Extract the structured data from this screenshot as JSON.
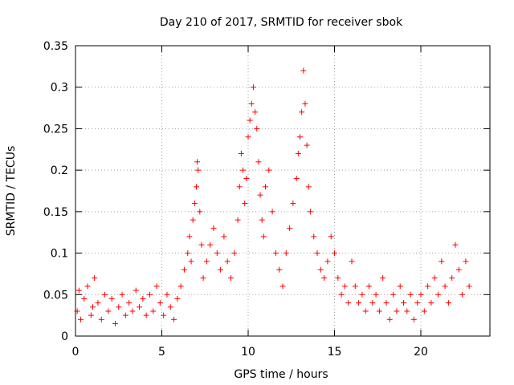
{
  "chart_data": {
    "type": "scatter",
    "title": "Day 210 of 2017, SRMTID for receiver sbok",
    "xlabel": "GPS time / hours",
    "ylabel": "SRMTID / TECUs",
    "xlim": [
      0,
      24
    ],
    "ylim": [
      0,
      0.35
    ],
    "x_ticks": [
      0,
      5,
      10,
      15,
      20
    ],
    "x_tick_labels": [
      "0",
      "5",
      "10",
      "15",
      "20"
    ],
    "y_ticks": [
      0,
      0.05,
      0.1,
      0.15,
      0.2,
      0.25,
      0.3,
      0.35
    ],
    "y_tick_labels": [
      "0",
      "0.05",
      "0.1",
      "0.15",
      "0.2",
      "0.25",
      "0.3",
      "0.35"
    ],
    "grid": true,
    "marker": "+",
    "color": "#ff0000",
    "series": [
      {
        "name": "SRMTID",
        "points": [
          [
            0.1,
            0.03
          ],
          [
            0.2,
            0.055
          ],
          [
            0.3,
            0.02
          ],
          [
            0.5,
            0.045
          ],
          [
            0.7,
            0.06
          ],
          [
            0.9,
            0.025
          ],
          [
            1.0,
            0.035
          ],
          [
            1.1,
            0.07
          ],
          [
            1.3,
            0.04
          ],
          [
            1.5,
            0.02
          ],
          [
            1.7,
            0.05
          ],
          [
            1.9,
            0.03
          ],
          [
            2.1,
            0.045
          ],
          [
            2.3,
            0.015
          ],
          [
            2.5,
            0.035
          ],
          [
            2.7,
            0.05
          ],
          [
            2.9,
            0.025
          ],
          [
            3.1,
            0.04
          ],
          [
            3.3,
            0.03
          ],
          [
            3.5,
            0.055
          ],
          [
            3.7,
            0.035
          ],
          [
            3.9,
            0.045
          ],
          [
            4.1,
            0.025
          ],
          [
            4.3,
            0.05
          ],
          [
            4.5,
            0.03
          ],
          [
            4.7,
            0.06
          ],
          [
            4.9,
            0.04
          ],
          [
            5.1,
            0.025
          ],
          [
            5.3,
            0.05
          ],
          [
            5.5,
            0.035
          ],
          [
            5.7,
            0.02
          ],
          [
            5.9,
            0.045
          ],
          [
            6.1,
            0.06
          ],
          [
            6.3,
            0.08
          ],
          [
            6.5,
            0.1
          ],
          [
            6.6,
            0.12
          ],
          [
            6.7,
            0.09
          ],
          [
            6.8,
            0.14
          ],
          [
            6.9,
            0.16
          ],
          [
            7.0,
            0.18
          ],
          [
            7.05,
            0.21
          ],
          [
            7.1,
            0.2
          ],
          [
            7.2,
            0.15
          ],
          [
            7.3,
            0.11
          ],
          [
            7.4,
            0.07
          ],
          [
            7.6,
            0.09
          ],
          [
            7.8,
            0.11
          ],
          [
            8.0,
            0.13
          ],
          [
            8.2,
            0.1
          ],
          [
            8.4,
            0.08
          ],
          [
            8.6,
            0.12
          ],
          [
            8.8,
            0.09
          ],
          [
            9.0,
            0.07
          ],
          [
            9.2,
            0.1
          ],
          [
            9.4,
            0.14
          ],
          [
            9.5,
            0.18
          ],
          [
            9.6,
            0.22
          ],
          [
            9.7,
            0.2
          ],
          [
            9.8,
            0.16
          ],
          [
            9.9,
            0.19
          ],
          [
            10.0,
            0.24
          ],
          [
            10.1,
            0.26
          ],
          [
            10.2,
            0.28
          ],
          [
            10.3,
            0.3
          ],
          [
            10.4,
            0.27
          ],
          [
            10.5,
            0.25
          ],
          [
            10.6,
            0.21
          ],
          [
            10.7,
            0.17
          ],
          [
            10.8,
            0.14
          ],
          [
            10.9,
            0.12
          ],
          [
            11.0,
            0.18
          ],
          [
            11.2,
            0.2
          ],
          [
            11.4,
            0.15
          ],
          [
            11.6,
            0.1
          ],
          [
            11.8,
            0.08
          ],
          [
            12.0,
            0.06
          ],
          [
            12.2,
            0.1
          ],
          [
            12.4,
            0.13
          ],
          [
            12.6,
            0.16
          ],
          [
            12.8,
            0.19
          ],
          [
            12.9,
            0.22
          ],
          [
            13.0,
            0.24
          ],
          [
            13.1,
            0.27
          ],
          [
            13.2,
            0.32
          ],
          [
            13.3,
            0.28
          ],
          [
            13.4,
            0.23
          ],
          [
            13.5,
            0.18
          ],
          [
            13.6,
            0.15
          ],
          [
            13.8,
            0.12
          ],
          [
            14.0,
            0.1
          ],
          [
            14.2,
            0.08
          ],
          [
            14.4,
            0.07
          ],
          [
            14.6,
            0.09
          ],
          [
            14.8,
            0.12
          ],
          [
            15.0,
            0.1
          ],
          [
            15.2,
            0.07
          ],
          [
            15.4,
            0.05
          ],
          [
            15.6,
            0.06
          ],
          [
            15.8,
            0.04
          ],
          [
            16.0,
            0.09
          ],
          [
            16.2,
            0.06
          ],
          [
            16.4,
            0.04
          ],
          [
            16.6,
            0.05
          ],
          [
            16.8,
            0.03
          ],
          [
            17.0,
            0.06
          ],
          [
            17.2,
            0.04
          ],
          [
            17.4,
            0.05
          ],
          [
            17.6,
            0.03
          ],
          [
            17.8,
            0.07
          ],
          [
            18.0,
            0.04
          ],
          [
            18.2,
            0.02
          ],
          [
            18.4,
            0.05
          ],
          [
            18.6,
            0.03
          ],
          [
            18.8,
            0.06
          ],
          [
            19.0,
            0.04
          ],
          [
            19.2,
            0.03
          ],
          [
            19.4,
            0.05
          ],
          [
            19.6,
            0.02
          ],
          [
            19.8,
            0.04
          ],
          [
            20.0,
            0.05
          ],
          [
            20.2,
            0.03
          ],
          [
            20.4,
            0.06
          ],
          [
            20.6,
            0.04
          ],
          [
            20.8,
            0.07
          ],
          [
            21.0,
            0.05
          ],
          [
            21.2,
            0.09
          ],
          [
            21.4,
            0.06
          ],
          [
            21.6,
            0.04
          ],
          [
            21.8,
            0.07
          ],
          [
            22.0,
            0.11
          ],
          [
            22.2,
            0.08
          ],
          [
            22.4,
            0.05
          ],
          [
            22.6,
            0.09
          ],
          [
            22.8,
            0.06
          ]
        ]
      }
    ]
  }
}
